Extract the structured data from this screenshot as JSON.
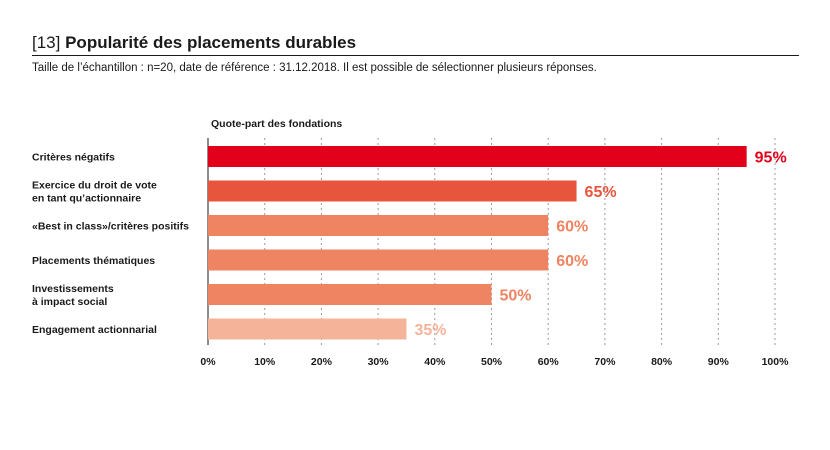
{
  "header": {
    "number": "[13]",
    "title": "Popularité des placements durables",
    "subtitle": "Taille de l’échantillon : n=20, date de référence : 31.12.2018. Il est possible de sélectionner plusieurs réponses."
  },
  "chart_data": {
    "type": "bar",
    "orientation": "horizontal",
    "axis_title": "Quote-part des fondations",
    "categories": [
      [
        "Critères négatifs"
      ],
      [
        "Exercice du droit de vote",
        "en tant qu’actionnaire"
      ],
      [
        "«Best in class»/critères positifs"
      ],
      [
        "Placements thématiques"
      ],
      [
        "Investissements",
        "à impact social"
      ],
      [
        "Engagement actionnarial"
      ]
    ],
    "values": [
      95,
      65,
      60,
      60,
      50,
      35
    ],
    "value_labels": [
      "95%",
      "65%",
      "60%",
      "60%",
      "50%",
      "35%"
    ],
    "colors": [
      "#e2001a",
      "#e8553d",
      "#ee8462",
      "#ee8462",
      "#ee8462",
      "#f5b49a"
    ],
    "label_colors": [
      "#e2001a",
      "#e8553d",
      "#ee8462",
      "#ee8462",
      "#ee8462",
      "#f5b49a"
    ],
    "xlim": [
      0,
      100
    ],
    "x_ticks": [
      0,
      10,
      20,
      30,
      40,
      50,
      60,
      70,
      80,
      90,
      100
    ],
    "x_tick_labels": [
      "0%",
      "10%",
      "20%",
      "30%",
      "40%",
      "50%",
      "60%",
      "70%",
      "80%",
      "90%",
      "100%"
    ],
    "grid": "vertical dotted"
  }
}
